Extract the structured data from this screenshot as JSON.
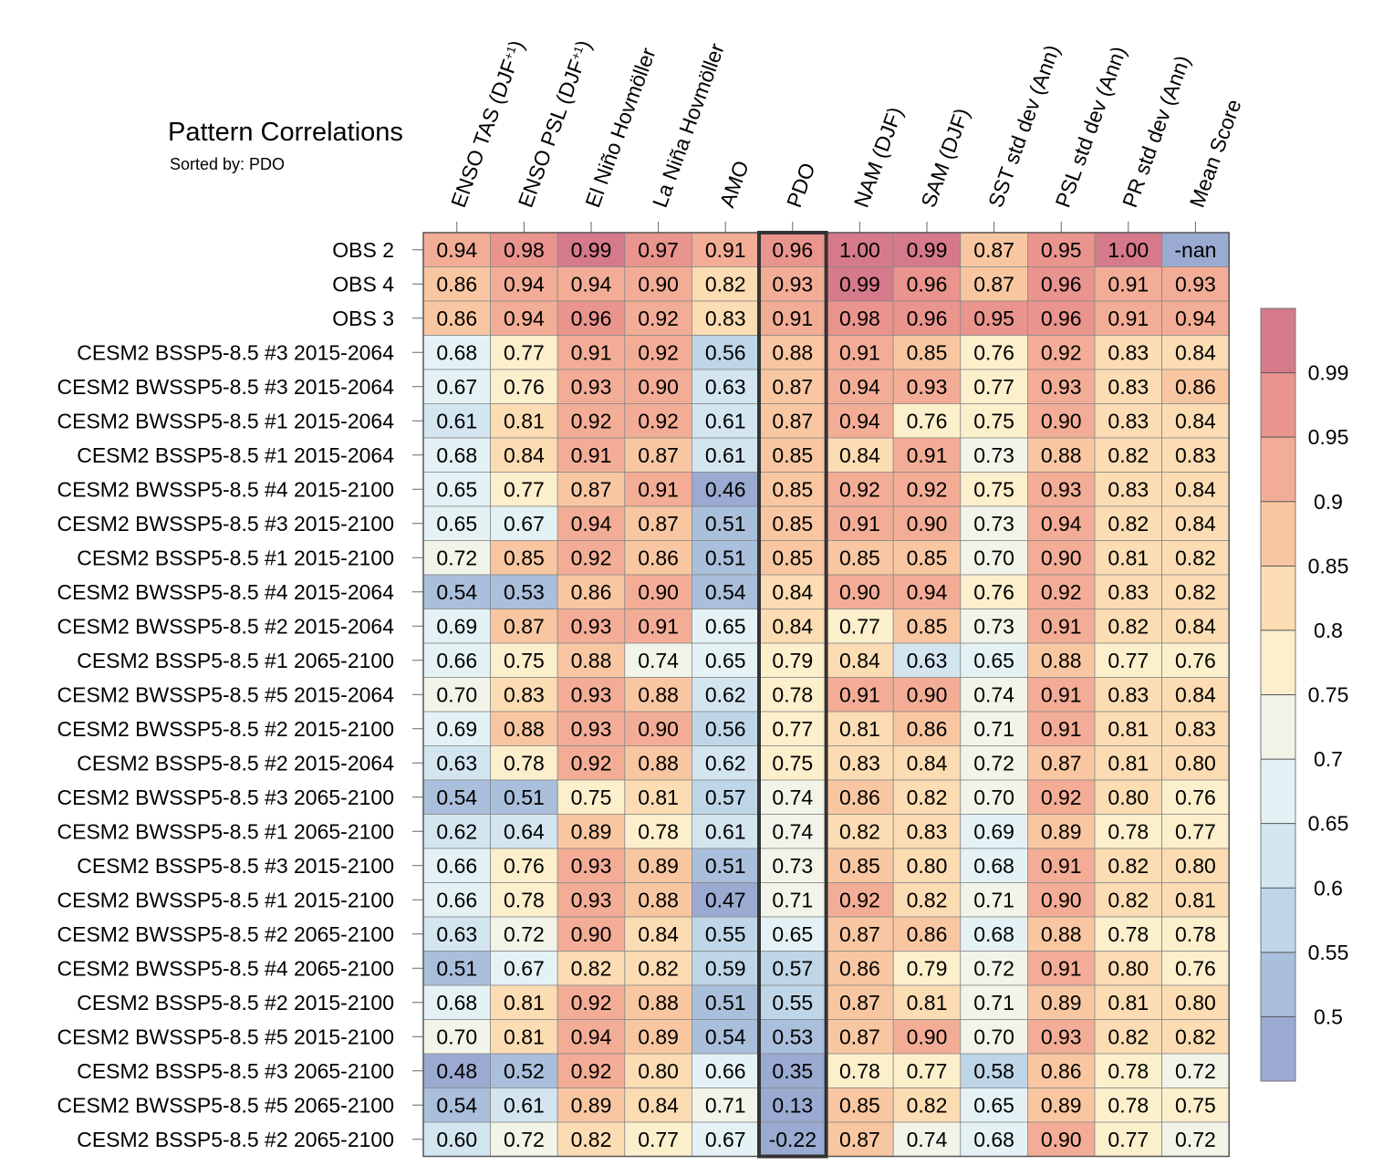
{
  "chart_data": {
    "type": "heatmap",
    "title": "Pattern Correlations",
    "subtitle": "Sorted by: PDO",
    "highlight_column": "PDO",
    "columns": [
      "ENSO TAS (DJF",
      "ENSO PSL (DJF",
      "El Niño Hovmöller",
      "La Niña Hovmöller",
      "AMO",
      "PDO",
      "NAM (DJF)",
      "SAM (DJF)",
      "SST std dev (Ann)",
      "PSL std dev (Ann)",
      "PR std dev (Ann)",
      "Mean Score"
    ],
    "column_suffix": [
      [
        "+1",
        ")"
      ],
      [
        "+1",
        ")"
      ],
      null,
      null,
      null,
      null,
      null,
      null,
      null,
      null,
      null,
      null
    ],
    "rows": [
      {
        "label": "OBS 2",
        "values": [
          "0.94",
          "0.98",
          "0.99",
          "0.97",
          "0.91",
          "0.96",
          "1.00",
          "0.99",
          "0.87",
          "0.95",
          "1.00",
          "-nan"
        ]
      },
      {
        "label": "OBS 4",
        "values": [
          "0.86",
          "0.94",
          "0.94",
          "0.90",
          "0.82",
          "0.93",
          "0.99",
          "0.96",
          "0.87",
          "0.96",
          "0.91",
          "0.93"
        ]
      },
      {
        "label": "OBS 3",
        "values": [
          "0.86",
          "0.94",
          "0.96",
          "0.92",
          "0.83",
          "0.91",
          "0.98",
          "0.96",
          "0.95",
          "0.96",
          "0.91",
          "0.94"
        ]
      },
      {
        "label": "CESM2 BSSP5-8.5 #3 2015-2064",
        "values": [
          "0.68",
          "0.77",
          "0.91",
          "0.92",
          "0.56",
          "0.88",
          "0.91",
          "0.85",
          "0.76",
          "0.92",
          "0.83",
          "0.84"
        ]
      },
      {
        "label": "CESM2 BWSSP5-8.5 #3 2015-2064",
        "values": [
          "0.67",
          "0.76",
          "0.93",
          "0.90",
          "0.63",
          "0.87",
          "0.94",
          "0.93",
          "0.77",
          "0.93",
          "0.83",
          "0.86"
        ]
      },
      {
        "label": "CESM2 BWSSP5-8.5 #1 2015-2064",
        "values": [
          "0.61",
          "0.81",
          "0.92",
          "0.92",
          "0.61",
          "0.87",
          "0.94",
          "0.76",
          "0.75",
          "0.90",
          "0.83",
          "0.84"
        ]
      },
      {
        "label": "CESM2 BSSP5-8.5 #1 2015-2064",
        "values": [
          "0.68",
          "0.84",
          "0.91",
          "0.87",
          "0.61",
          "0.85",
          "0.84",
          "0.91",
          "0.73",
          "0.88",
          "0.82",
          "0.83"
        ]
      },
      {
        "label": "CESM2 BWSSP5-8.5 #4 2015-2100",
        "values": [
          "0.65",
          "0.77",
          "0.87",
          "0.91",
          "0.46",
          "0.85",
          "0.92",
          "0.92",
          "0.75",
          "0.93",
          "0.83",
          "0.84"
        ]
      },
      {
        "label": "CESM2 BWSSP5-8.5 #3 2015-2100",
        "values": [
          "0.65",
          "0.67",
          "0.94",
          "0.87",
          "0.51",
          "0.85",
          "0.91",
          "0.90",
          "0.73",
          "0.94",
          "0.82",
          "0.84"
        ]
      },
      {
        "label": "CESM2 BSSP5-8.5 #1 2015-2100",
        "values": [
          "0.72",
          "0.85",
          "0.92",
          "0.86",
          "0.51",
          "0.85",
          "0.85",
          "0.85",
          "0.70",
          "0.90",
          "0.81",
          "0.82"
        ]
      },
      {
        "label": "CESM2 BWSSP5-8.5 #4 2015-2064",
        "values": [
          "0.54",
          "0.53",
          "0.86",
          "0.90",
          "0.54",
          "0.84",
          "0.90",
          "0.94",
          "0.76",
          "0.92",
          "0.83",
          "0.82"
        ]
      },
      {
        "label": "CESM2 BWSSP5-8.5 #2 2015-2064",
        "values": [
          "0.69",
          "0.87",
          "0.93",
          "0.91",
          "0.65",
          "0.84",
          "0.77",
          "0.85",
          "0.73",
          "0.91",
          "0.82",
          "0.84"
        ]
      },
      {
        "label": "CESM2 BSSP5-8.5 #1 2065-2100",
        "values": [
          "0.66",
          "0.75",
          "0.88",
          "0.74",
          "0.65",
          "0.79",
          "0.84",
          "0.63",
          "0.65",
          "0.88",
          "0.77",
          "0.76"
        ]
      },
      {
        "label": "CESM2 BWSSP5-8.5 #5 2015-2064",
        "values": [
          "0.70",
          "0.83",
          "0.93",
          "0.88",
          "0.62",
          "0.78",
          "0.91",
          "0.90",
          "0.74",
          "0.91",
          "0.83",
          "0.84"
        ]
      },
      {
        "label": "CESM2 BWSSP5-8.5 #2 2015-2100",
        "values": [
          "0.69",
          "0.88",
          "0.93",
          "0.90",
          "0.56",
          "0.77",
          "0.81",
          "0.86",
          "0.71",
          "0.91",
          "0.81",
          "0.83"
        ]
      },
      {
        "label": "CESM2 BSSP5-8.5 #2 2015-2064",
        "values": [
          "0.63",
          "0.78",
          "0.92",
          "0.88",
          "0.62",
          "0.75",
          "0.83",
          "0.84",
          "0.72",
          "0.87",
          "0.81",
          "0.80"
        ]
      },
      {
        "label": "CESM2 BWSSP5-8.5 #3 2065-2100",
        "values": [
          "0.54",
          "0.51",
          "0.75",
          "0.81",
          "0.57",
          "0.74",
          "0.86",
          "0.82",
          "0.70",
          "0.92",
          "0.80",
          "0.76"
        ]
      },
      {
        "label": "CESM2 BWSSP5-8.5 #1 2065-2100",
        "values": [
          "0.62",
          "0.64",
          "0.89",
          "0.78",
          "0.61",
          "0.74",
          "0.82",
          "0.83",
          "0.69",
          "0.89",
          "0.78",
          "0.77"
        ]
      },
      {
        "label": "CESM2 BSSP5-8.5 #3 2015-2100",
        "values": [
          "0.66",
          "0.76",
          "0.93",
          "0.89",
          "0.51",
          "0.73",
          "0.85",
          "0.80",
          "0.68",
          "0.91",
          "0.82",
          "0.80"
        ]
      },
      {
        "label": "CESM2 BWSSP5-8.5 #1 2015-2100",
        "values": [
          "0.66",
          "0.78",
          "0.93",
          "0.88",
          "0.47",
          "0.71",
          "0.92",
          "0.82",
          "0.71",
          "0.90",
          "0.82",
          "0.81"
        ]
      },
      {
        "label": "CESM2 BWSSP5-8.5 #2 2065-2100",
        "values": [
          "0.63",
          "0.72",
          "0.90",
          "0.84",
          "0.55",
          "0.65",
          "0.87",
          "0.86",
          "0.68",
          "0.88",
          "0.78",
          "0.78"
        ]
      },
      {
        "label": "CESM2 BWSSP5-8.5 #4 2065-2100",
        "values": [
          "0.51",
          "0.67",
          "0.82",
          "0.82",
          "0.59",
          "0.57",
          "0.86",
          "0.79",
          "0.72",
          "0.91",
          "0.80",
          "0.76"
        ]
      },
      {
        "label": "CESM2 BSSP5-8.5 #2 2015-2100",
        "values": [
          "0.68",
          "0.81",
          "0.92",
          "0.88",
          "0.51",
          "0.55",
          "0.87",
          "0.81",
          "0.71",
          "0.89",
          "0.81",
          "0.80"
        ]
      },
      {
        "label": "CESM2 BWSSP5-8.5 #5 2015-2100",
        "values": [
          "0.70",
          "0.81",
          "0.94",
          "0.89",
          "0.54",
          "0.53",
          "0.87",
          "0.90",
          "0.70",
          "0.93",
          "0.82",
          "0.82"
        ]
      },
      {
        "label": "CESM2 BSSP5-8.5 #3 2065-2100",
        "values": [
          "0.48",
          "0.52",
          "0.92",
          "0.80",
          "0.66",
          "0.35",
          "0.78",
          "0.77",
          "0.58",
          "0.86",
          "0.78",
          "0.72"
        ]
      },
      {
        "label": "CESM2 BWSSP5-8.5 #5 2065-2100",
        "values": [
          "0.54",
          "0.61",
          "0.89",
          "0.84",
          "0.71",
          "0.13",
          "0.85",
          "0.82",
          "0.65",
          "0.89",
          "0.78",
          "0.75"
        ]
      },
      {
        "label": "CESM2 BSSP5-8.5 #2 2065-2100",
        "values": [
          "0.60",
          "0.72",
          "0.82",
          "0.77",
          "0.67",
          "-0.22",
          "0.87",
          "0.74",
          "0.68",
          "0.90",
          "0.77",
          "0.72"
        ]
      }
    ],
    "colorbar": {
      "tick_labels": [
        "0.99",
        "0.95",
        "0.9",
        "0.85",
        "0.8",
        "0.75",
        "0.7",
        "0.65",
        "0.6",
        "0.55",
        "0.5"
      ],
      "boundaries": [
        0.5,
        0.55,
        0.6,
        0.65,
        0.7,
        0.75,
        0.8,
        0.85,
        0.9,
        0.95,
        0.99
      ],
      "colors": [
        "#9aaad0",
        "#aabfdb",
        "#bed6e7",
        "#d3e6f0",
        "#e4f2f6",
        "#f2f4ea",
        "#fcefcc",
        "#fbdcb3",
        "#f8c7a2",
        "#f3ad96",
        "#e9948d",
        "#d57a8a"
      ],
      "nan_color": "#9aaad0"
    }
  }
}
